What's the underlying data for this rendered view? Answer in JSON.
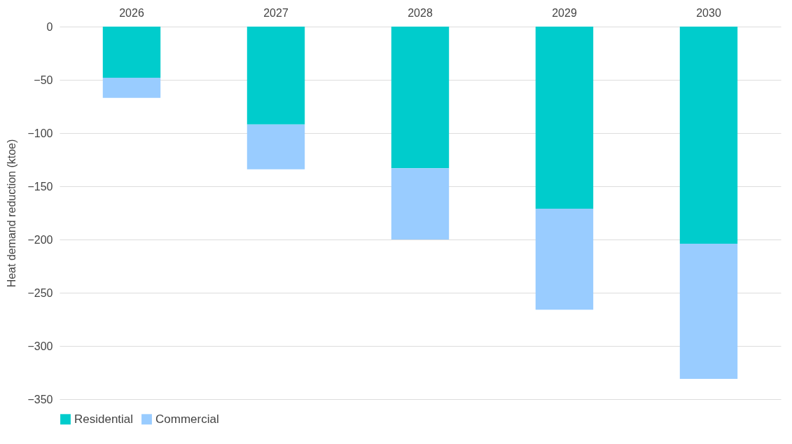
{
  "chart_data": {
    "type": "bar",
    "stacked": true,
    "ylabel": "Heat demand reduction (ktoe)",
    "categories": [
      "2026",
      "2027",
      "2028",
      "2029",
      "2030"
    ],
    "series": [
      {
        "name": "Residential",
        "color": "#00cccc",
        "values": [
          -48,
          -92,
          -133,
          -171,
          -204
        ]
      },
      {
        "name": "Commercial",
        "color": "#99ccff",
        "values": [
          -19,
          -42,
          -67,
          -95,
          -127
        ]
      }
    ],
    "ylim": [
      -350,
      0
    ],
    "yticks": [
      -350,
      -300,
      -250,
      -200,
      -150,
      -100,
      -50,
      0
    ],
    "grid": "y",
    "legend": "bottom"
  }
}
